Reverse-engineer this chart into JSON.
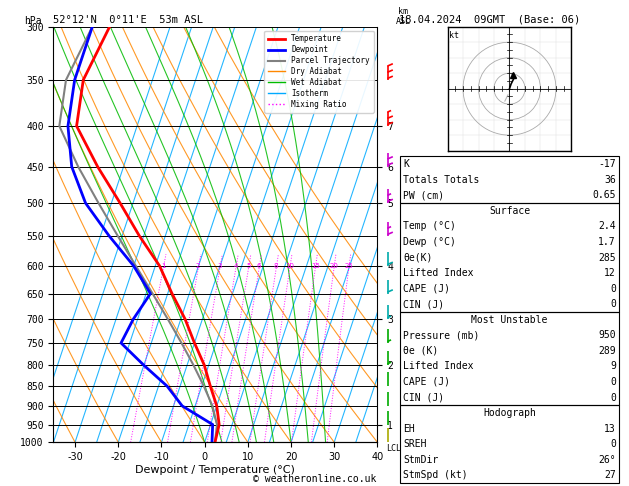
{
  "title_left": "52°12'N  0°11'E  53m ASL",
  "title_right": "18.04.2024  09GMT  (Base: 06)",
  "xlabel": "Dewpoint / Temperature (°C)",
  "pressure_levels": [
    300,
    350,
    400,
    450,
    500,
    550,
    600,
    650,
    700,
    750,
    800,
    850,
    900,
    950,
    1000
  ],
  "temp_xlim": [
    -35,
    40
  ],
  "km_ticks": {
    "1": 950,
    "2": 800,
    "3": 700,
    "4": 600,
    "5": 500,
    "6": 450,
    "7": 400
  },
  "mixing_ratio_values": [
    1,
    2,
    3,
    4,
    5,
    6,
    8,
    10,
    15,
    20,
    25
  ],
  "isotherm_temps": [
    -40,
    -35,
    -30,
    -25,
    -20,
    -15,
    -10,
    -5,
    0,
    5,
    10,
    15,
    20,
    25,
    30,
    35,
    40
  ],
  "dry_adiabat_base_temps": [
    -40,
    -30,
    -20,
    -10,
    0,
    10,
    20,
    30,
    40,
    50,
    60,
    70
  ],
  "wet_adiabat_base_temps": [
    0,
    4,
    8,
    12,
    16,
    20,
    24,
    28
  ],
  "temperature_profile": {
    "pressure": [
      1000,
      950,
      900,
      850,
      800,
      750,
      700,
      650,
      600,
      550,
      500,
      450,
      400,
      350,
      300
    ],
    "temp_c": [
      2.4,
      2.0,
      0.0,
      -3.0,
      -6.0,
      -10.0,
      -14.0,
      -19.0,
      -24.0,
      -31.0,
      -38.0,
      -46.0,
      -54.0,
      -56.0,
      -54.0
    ]
  },
  "dewpoint_profile": {
    "pressure": [
      1000,
      950,
      900,
      850,
      800,
      750,
      700,
      650,
      600,
      550,
      500,
      450,
      400,
      350,
      300
    ],
    "temp_c": [
      1.7,
      0.5,
      -8.0,
      -13.0,
      -20.0,
      -27.0,
      -26.0,
      -24.0,
      -30.0,
      -38.0,
      -46.0,
      -52.0,
      -56.0,
      -58.0,
      -58.0
    ]
  },
  "parcel_profile": {
    "pressure": [
      1000,
      950,
      900,
      850,
      800,
      750,
      700,
      650,
      600,
      550,
      500,
      450,
      400,
      350,
      300
    ],
    "temp_c": [
      2.4,
      1.5,
      -1.0,
      -4.5,
      -8.5,
      -13.0,
      -18.0,
      -23.5,
      -29.5,
      -36.0,
      -43.0,
      -50.5,
      -58.0,
      -60.0,
      -58.0
    ]
  },
  "skew_factor": 32,
  "colors": {
    "temperature": "#ff0000",
    "dewpoint": "#0000ff",
    "parcel": "#808080",
    "dry_adiabat": "#ff8800",
    "wet_adiabat": "#00bb00",
    "isotherm": "#00aaff",
    "mixing_ratio": "#ff00ff",
    "background": "#ffffff",
    "grid": "#000000"
  },
  "legend_entries": [
    {
      "label": "Temperature",
      "color": "#ff0000",
      "lw": 2,
      "ls": "solid"
    },
    {
      "label": "Dewpoint",
      "color": "#0000ff",
      "lw": 2,
      "ls": "solid"
    },
    {
      "label": "Parcel Trajectory",
      "color": "#808080",
      "lw": 1.5,
      "ls": "solid"
    },
    {
      "label": "Dry Adiabat",
      "color": "#ff8800",
      "lw": 1,
      "ls": "solid"
    },
    {
      "label": "Wet Adiabat",
      "color": "#00bb00",
      "lw": 1,
      "ls": "solid"
    },
    {
      "label": "Isotherm",
      "color": "#00aaff",
      "lw": 1,
      "ls": "solid"
    },
    {
      "label": "Mixing Ratio",
      "color": "#ff00ff",
      "lw": 1,
      "ls": "dotted"
    }
  ],
  "info_panel": {
    "K": "-17",
    "Totals Totals": "36",
    "PW (cm)": "0.65",
    "Surface_items": [
      [
        "Temp (°C)",
        "2.4"
      ],
      [
        "Dewp (°C)",
        "1.7"
      ],
      [
        "θe(K)",
        "285"
      ],
      [
        "Lifted Index",
        "12"
      ],
      [
        "CAPE (J)",
        "0"
      ],
      [
        "CIN (J)",
        "0"
      ]
    ],
    "MU_items": [
      [
        "Pressure (mb)",
        "950"
      ],
      [
        "θe (K)",
        "289"
      ],
      [
        "Lifted Index",
        "9"
      ],
      [
        "CAPE (J)",
        "0"
      ],
      [
        "CIN (J)",
        "0"
      ]
    ],
    "Hodo_items": [
      [
        "EH",
        "13"
      ],
      [
        "SREH",
        "0"
      ],
      [
        "StmDir",
        "26°"
      ],
      [
        "StmSpd (kt)",
        "27"
      ]
    ]
  },
  "wind_barbs": [
    {
      "pressure": 300,
      "color": "#ff0000",
      "u": 0,
      "v": 35
    },
    {
      "pressure": 350,
      "color": "#ff0000",
      "u": 0,
      "v": 30
    },
    {
      "pressure": 400,
      "color": "#ff0000",
      "u": 0,
      "v": 25
    },
    {
      "pressure": 450,
      "color": "#cc00cc",
      "u": 0,
      "v": 20
    },
    {
      "pressure": 500,
      "color": "#cc00cc",
      "u": 0,
      "v": 18
    },
    {
      "pressure": 550,
      "color": "#cc00cc",
      "u": 0,
      "v": 15
    },
    {
      "pressure": 600,
      "color": "#00aaaa",
      "u": 0,
      "v": 12
    },
    {
      "pressure": 650,
      "color": "#00aaaa",
      "u": 0,
      "v": 10
    },
    {
      "pressure": 700,
      "color": "#00aaaa",
      "u": 0,
      "v": 8
    },
    {
      "pressure": 750,
      "color": "#00aa00",
      "u": 0,
      "v": 6
    },
    {
      "pressure": 800,
      "color": "#00aa00",
      "u": 0,
      "v": 5
    },
    {
      "pressure": 850,
      "color": "#00aa00",
      "u": 0,
      "v": 4
    },
    {
      "pressure": 900,
      "color": "#00aa00",
      "u": 0,
      "v": 3
    },
    {
      "pressure": 950,
      "color": "#00aa00",
      "u": 0,
      "v": 2
    },
    {
      "pressure": 1000,
      "color": "#aaaa00",
      "u": 0,
      "v": 2
    }
  ],
  "footer": "© weatheronline.co.uk"
}
